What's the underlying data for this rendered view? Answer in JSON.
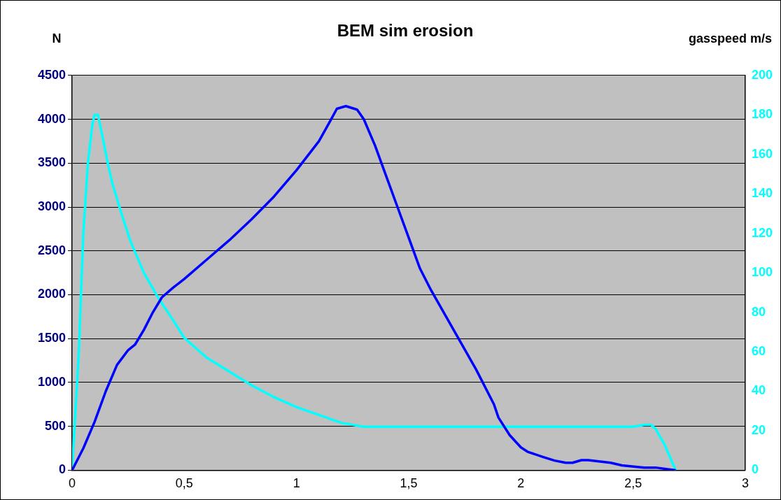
{
  "chart_data": {
    "type": "line",
    "title": "BEM sim erosion",
    "ylabel": "N",
    "y2label": "gasspeed m/s",
    "xlim": [
      0,
      3
    ],
    "xticks": [
      0,
      {
        "value": 0.5,
        "label": "0,5"
      },
      1,
      {
        "value": 1.5,
        "label": "1,5"
      },
      2,
      {
        "value": 2.5,
        "label": "2,5"
      },
      3
    ],
    "ylim": [
      0,
      4500
    ],
    "yticks": [
      0,
      500,
      1000,
      1500,
      2000,
      2500,
      3000,
      3500,
      4000,
      4500
    ],
    "y2lim": [
      0,
      200
    ],
    "y2ticks": [
      0,
      20,
      40,
      60,
      80,
      100,
      120,
      140,
      160,
      180,
      200
    ],
    "grid": "y",
    "legend": false,
    "marker": "none",
    "line_style": "solid",
    "series": [
      {
        "color": "#0000ff",
        "x": [
          0,
          0.05,
          0.1,
          0.15,
          0.2,
          0.25,
          0.28,
          0.32,
          0.36,
          0.4,
          0.45,
          0.5,
          0.6,
          0.7,
          0.8,
          0.9,
          1.0,
          1.1,
          1.15,
          1.18,
          1.22,
          1.27,
          1.3,
          1.35,
          1.4,
          1.45,
          1.5,
          1.55,
          1.6,
          1.7,
          1.8,
          1.88,
          1.9,
          1.95,
          2.0,
          2.03,
          2.1,
          2.15,
          2.2,
          2.23,
          2.27,
          2.3,
          2.4,
          2.45,
          2.55,
          2.6,
          2.69
        ],
        "values": [
          0,
          250,
          550,
          900,
          1200,
          1370,
          1430,
          1600,
          1800,
          1970,
          2080,
          2180,
          2400,
          2620,
          2860,
          3120,
          3420,
          3750,
          3980,
          4120,
          4150,
          4110,
          4000,
          3700,
          3350,
          3000,
          2650,
          2300,
          2050,
          1600,
          1150,
          750,
          600,
          400,
          260,
          210,
          150,
          110,
          85,
          85,
          115,
          115,
          85,
          55,
          30,
          30,
          0
        ]
      },
      {
        "color": "#00ffff",
        "axis": "y2",
        "x": [
          0,
          0.03,
          0.05,
          0.07,
          0.09,
          0.1,
          0.115,
          0.13,
          0.16,
          0.18,
          0.22,
          0.26,
          0.32,
          0.38,
          0.45,
          0.5,
          0.6,
          0.7,
          0.8,
          0.9,
          1.0,
          1.1,
          1.2,
          1.3,
          2.5,
          2.55,
          2.58,
          2.6,
          2.64,
          2.69
        ],
        "values": [
          0,
          60,
          120,
          155,
          175,
          180,
          180,
          172,
          155,
          145,
          130,
          116,
          100,
          88,
          76,
          67,
          57,
          50,
          43,
          37,
          32,
          28,
          24,
          22,
          22,
          23,
          23,
          21,
          13,
          0
        ]
      }
    ]
  }
}
